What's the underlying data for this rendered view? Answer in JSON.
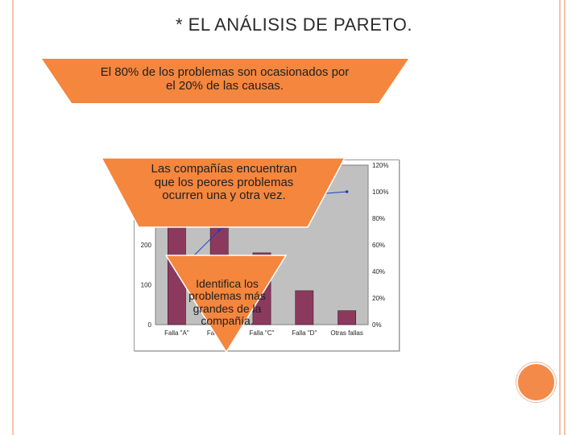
{
  "slide": {
    "title": "* EL ANÁLISIS DE PARETO.",
    "callout_top": "El 80% de los problemas son ocasionados por el 20% de las causas.",
    "callout_middle": "Las compañías encuentran que los peores problemas ocurren una y otra vez.",
    "callout_bottom": "Identifica los problemas más grandes de la compañía.",
    "colors": {
      "orange": "#f4863e",
      "frame": "#f4c2ad",
      "bar": "#8b3a5e",
      "line": "#1f3fbf",
      "plot_bg": "#c0c0c0"
    },
    "decoration_icon": "orange-circle"
  },
  "chart_data": {
    "type": "bar",
    "categories": [
      "Falla \"A\"",
      "Falla \"B\"",
      "Falla \"C\"",
      "Falla \"D\"",
      "Otras fallas"
    ],
    "values": [
      390,
      320,
      180,
      85,
      35
    ],
    "ylim": [
      0,
      400
    ],
    "yticks": [
      0,
      100,
      200,
      300
    ],
    "y2lim": [
      0,
      1.2
    ],
    "y2ticks": [
      "0%",
      "20%",
      "40%",
      "60%",
      "80%",
      "100%",
      "120%"
    ],
    "cumulative_line": {
      "name": "",
      "values": [
        0.39,
        0.71,
        0.89,
        0.975,
        1.0
      ]
    },
    "grid": false,
    "legend": "none"
  }
}
